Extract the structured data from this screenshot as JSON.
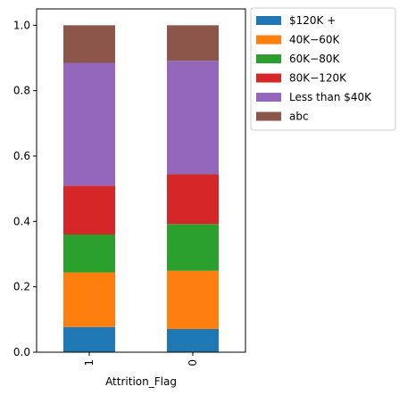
{
  "chart_data": {
    "type": "bar",
    "stacked": true,
    "xlabel": "Attrition_Flag",
    "ylabel": "",
    "categories": [
      "1",
      "0"
    ],
    "ylim": [
      0,
      1.05
    ],
    "yticks": [
      "0.0",
      "0.2",
      "0.4",
      "0.6",
      "0.8",
      "1.0"
    ],
    "ytick_values": [
      0,
      0.2,
      0.4,
      0.6,
      0.8,
      1.0
    ],
    "legend_position": "outside-top-right",
    "series": [
      {
        "name": "$120K +",
        "color": "#1f77b4",
        "values": [
          0.077,
          0.071
        ]
      },
      {
        "name": "$40K - $60K",
        "color": "#ff7f0e",
        "values": [
          0.167,
          0.178
        ]
      },
      {
        "name": "$60K - $80K",
        "color": "#2ca02c",
        "values": [
          0.116,
          0.143
        ]
      },
      {
        "name": "$80K - $120K",
        "color": "#d62728",
        "values": [
          0.149,
          0.152
        ]
      },
      {
        "name": "Less than $40K",
        "color": "#9467bd",
        "values": [
          0.376,
          0.347
        ]
      },
      {
        "name": "abc",
        "color": "#8c564b",
        "values": [
          0.115,
          0.109
        ]
      }
    ],
    "legend_labels": [
      "$120K +",
      "40K−60K",
      "60K−80K",
      "80K−120K",
      "Less than $40K",
      "abc"
    ]
  }
}
